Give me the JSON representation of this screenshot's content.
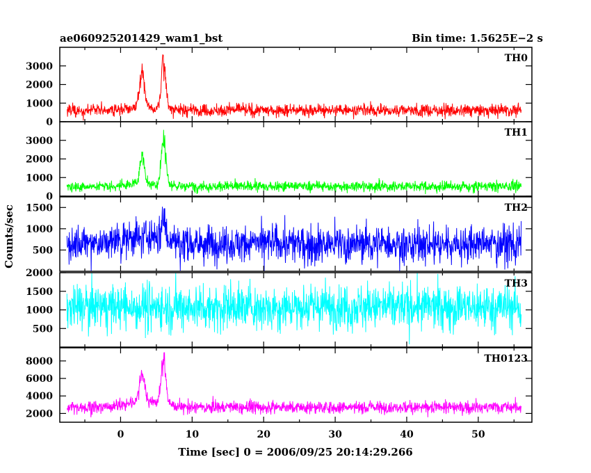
{
  "chart_data": {
    "type": "line",
    "title_left": "ae060925201429_wam1_bst",
    "title_right": "Bin time: 1.5625E−2 s",
    "xlabel": "Time [sec] 0 = 2006/09/25 20:14:29.266",
    "ylabel": "Counts/sec",
    "xlim": [
      -8.5,
      57.5
    ],
    "x_ticks": [
      0,
      10,
      20,
      30,
      40,
      50
    ],
    "x_tick_labels": [
      "0",
      "10",
      "20",
      "30",
      "40",
      "50"
    ],
    "series_x_range": [
      -7.5,
      56.0
    ],
    "grid": false,
    "panels": [
      {
        "name": "TH0",
        "color": "#ff0000",
        "ylim": [
          0,
          4000
        ],
        "y_ticks": [
          0,
          1000,
          2000,
          3000
        ],
        "y_tick_labels": [
          "0",
          "1000",
          "2000",
          "3000"
        ],
        "baseline": 620,
        "noise": 240,
        "peaks": [
          {
            "t": 3.0,
            "amp": 2350,
            "width": 0.5
          },
          {
            "t": 6.0,
            "amp": 3100,
            "width": 0.45
          }
        ]
      },
      {
        "name": "TH1",
        "color": "#00ff00",
        "ylim": [
          0,
          4000
        ],
        "y_ticks": [
          0,
          1000,
          2000,
          3000
        ],
        "y_tick_labels": [
          "0",
          "1000",
          "2000",
          "3000"
        ],
        "baseline": 520,
        "noise": 200,
        "peaks": [
          {
            "t": 3.0,
            "amp": 1800,
            "width": 0.5
          },
          {
            "t": 6.0,
            "amp": 3300,
            "width": 0.45
          }
        ]
      },
      {
        "name": "TH2",
        "color": "#0000ff",
        "ylim": [
          0,
          1750
        ],
        "y_ticks": [
          500,
          1000,
          1500
        ],
        "y_tick_labels": [
          "500",
          "1000",
          "1500"
        ],
        "baseline": 650,
        "noise": 300,
        "peaks": [
          {
            "t": 6.0,
            "amp": 700,
            "width": 0.4
          }
        ]
      },
      {
        "name": "TH3",
        "color": "#00ffff",
        "ylim": [
          0,
          2000
        ],
        "y_ticks": [
          500,
          1000,
          1500,
          2000
        ],
        "y_tick_labels": [
          "500",
          "1000",
          "1500",
          "2000"
        ],
        "baseline": 1080,
        "noise": 420,
        "peaks": []
      },
      {
        "name": "TH0123",
        "color": "#ff00ff",
        "ylim": [
          1000,
          9500
        ],
        "y_ticks": [
          2000,
          4000,
          6000,
          8000
        ],
        "y_tick_labels": [
          "2000",
          "4000",
          "6000",
          "8000"
        ],
        "baseline": 2700,
        "noise": 500,
        "peaks": [
          {
            "t": 3.0,
            "amp": 4000,
            "width": 0.5
          },
          {
            "t": 6.0,
            "amp": 6600,
            "width": 0.45
          }
        ]
      }
    ]
  }
}
